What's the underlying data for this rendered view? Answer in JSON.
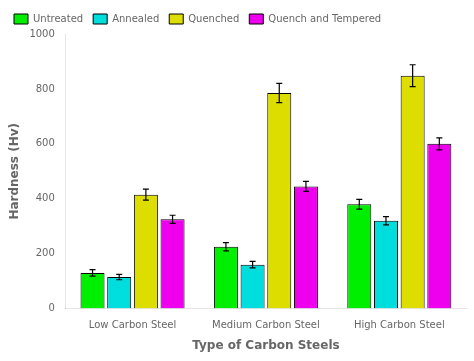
{
  "chart_data": {
    "type": "bar",
    "categories": [
      "Low Carbon Steel",
      "Medium Carbon Steel",
      "High Carbon Steel"
    ],
    "series": [
      {
        "name": "Untreated",
        "color": "#00ee00",
        "values": [
          130,
          225,
          380
        ],
        "errors": [
          12,
          15,
          18
        ]
      },
      {
        "name": "Annealed",
        "color": "#00dddd",
        "values": [
          115,
          160,
          320
        ],
        "errors": [
          10,
          12,
          15
        ]
      },
      {
        "name": "Quenched",
        "color": "#dddd00",
        "values": [
          415,
          785,
          848
        ],
        "errors": [
          20,
          35,
          40
        ]
      },
      {
        "name": "Quench and Tempered",
        "color": "#ee00ee",
        "values": [
          325,
          445,
          600
        ],
        "errors": [
          15,
          18,
          22
        ]
      }
    ],
    "xlabel": "Type of Carbon Steels",
    "ylabel": "Hardness (Hv)",
    "ylim": [
      0,
      1000
    ],
    "yticks": [
      0,
      200,
      400,
      600,
      800,
      1000
    ],
    "grid": false,
    "legend": "upper left"
  }
}
